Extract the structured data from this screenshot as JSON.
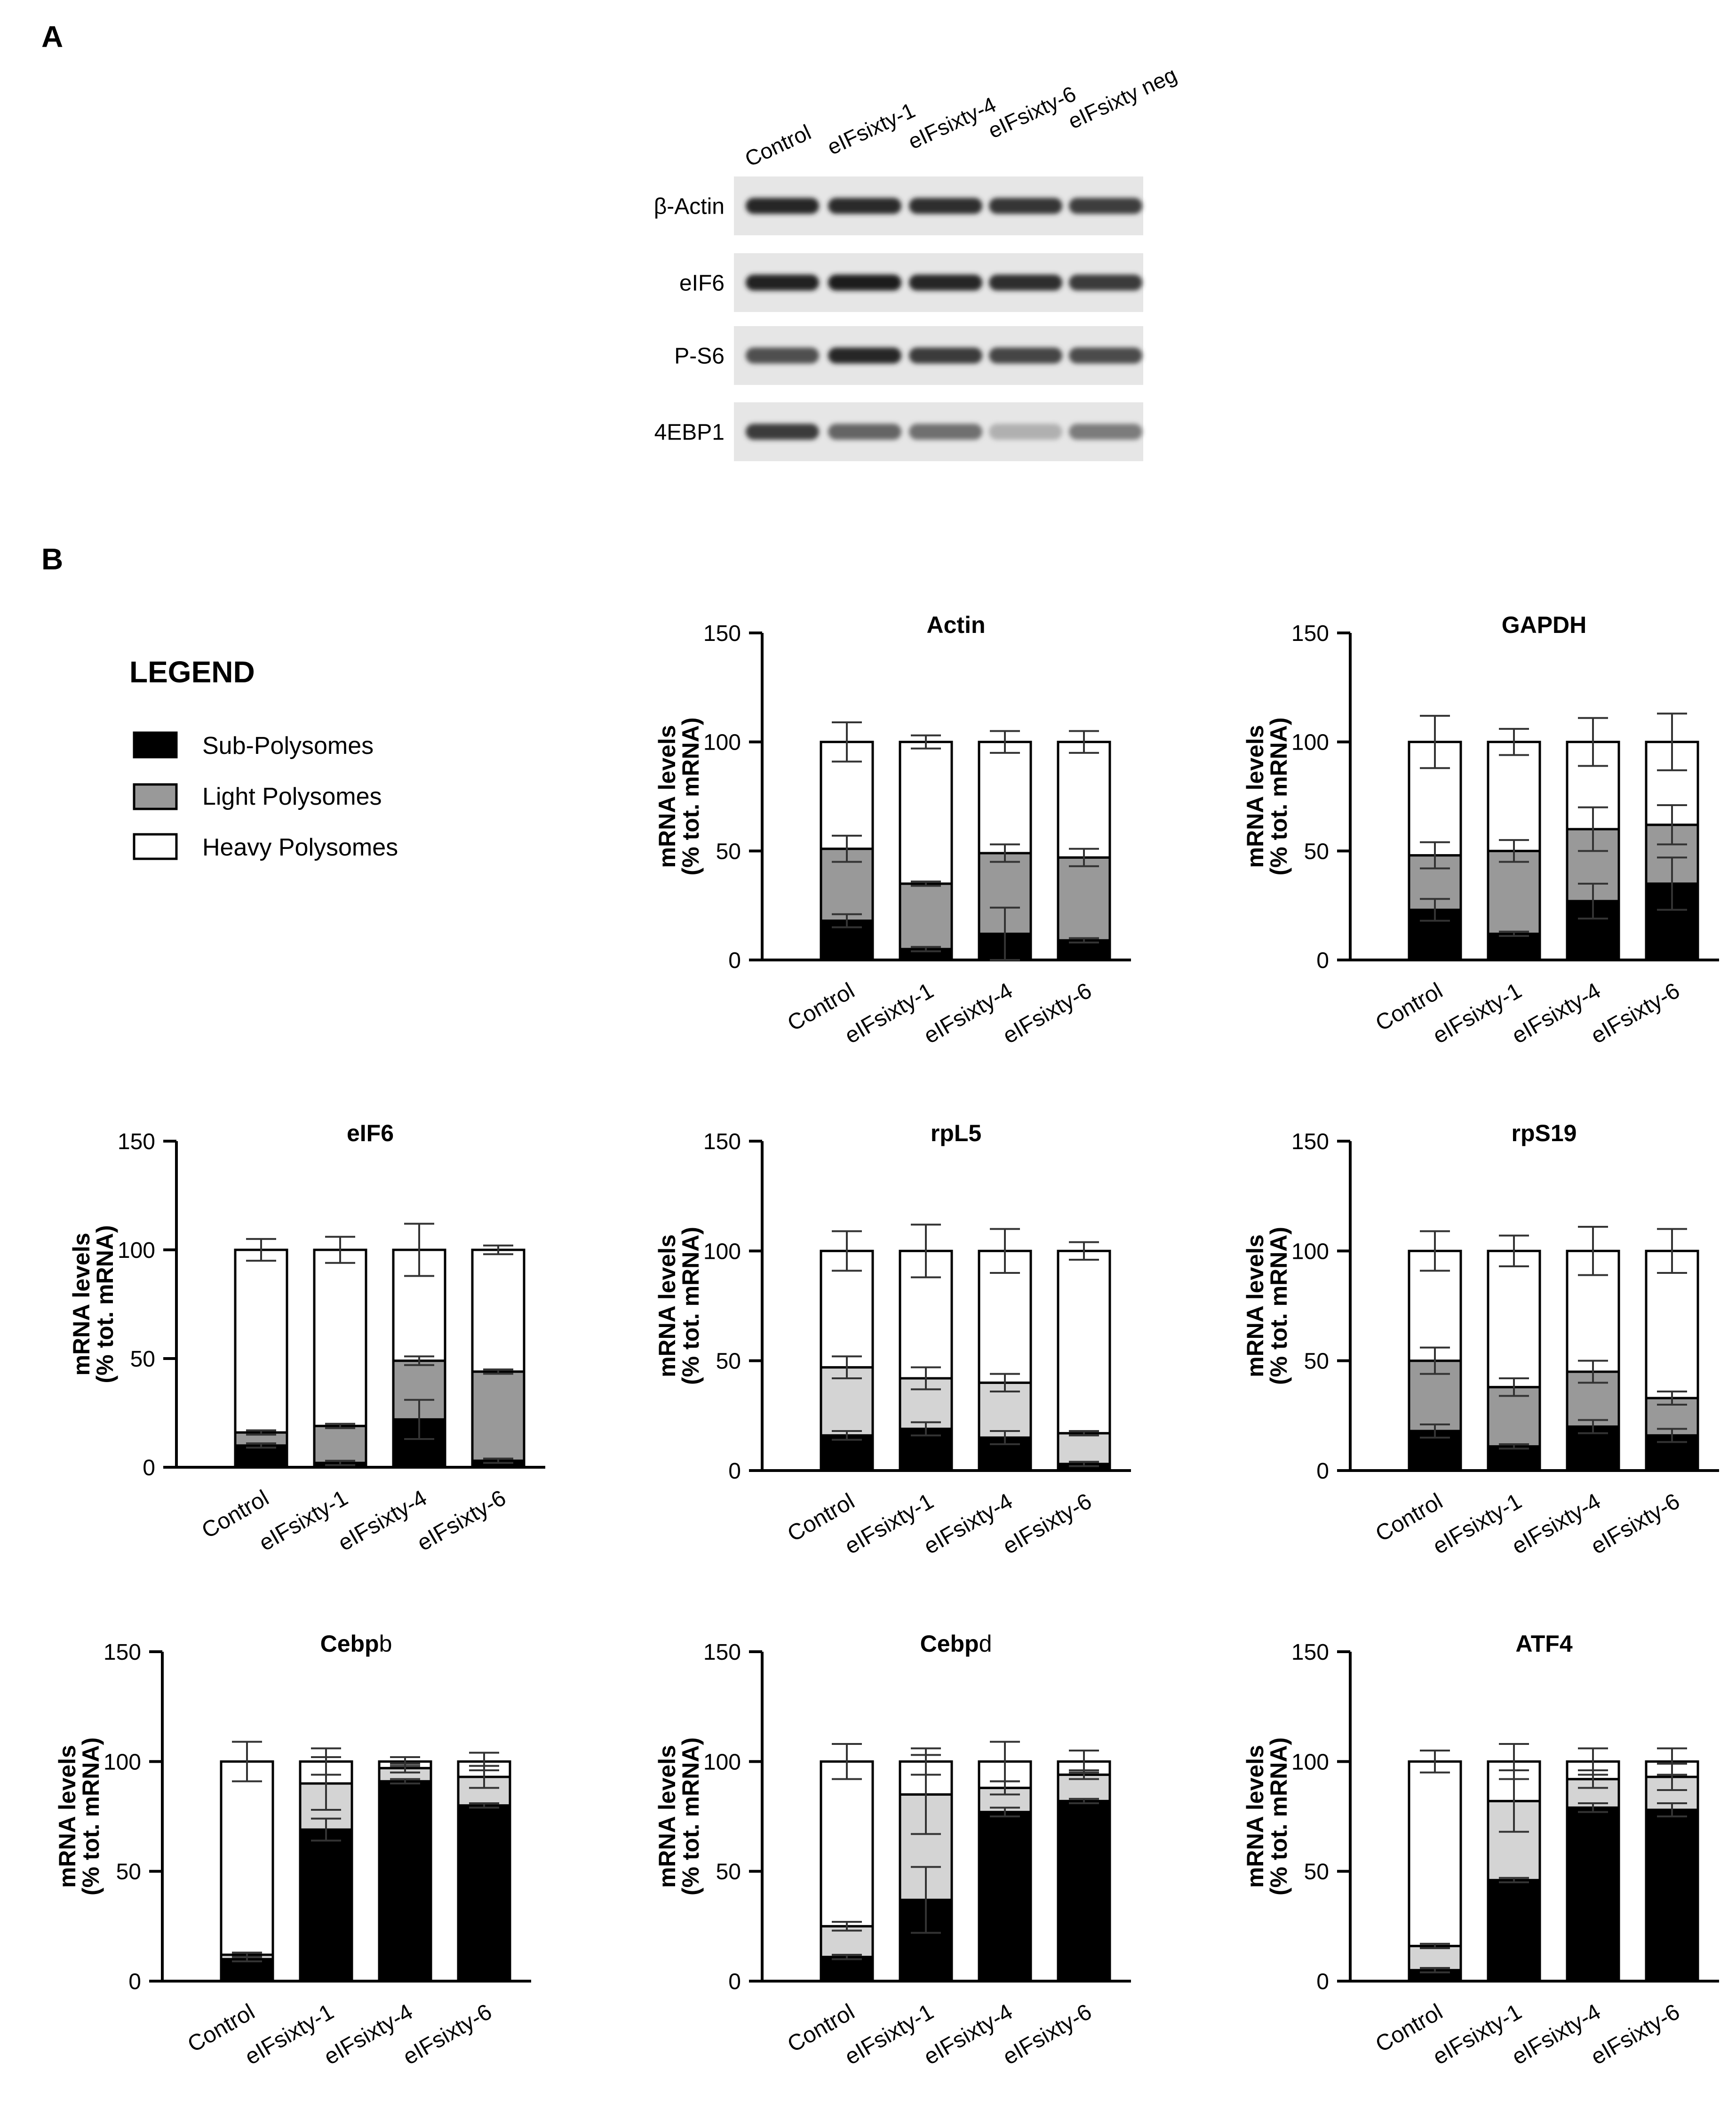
{
  "panel_a": {
    "letter": "A",
    "lanes": [
      "Control",
      "eIFsixty-1",
      "eIFsixty-4",
      "eIFsixty-6",
      "eIFsixty neg"
    ],
    "blots": [
      {
        "label": "β-Actin",
        "intensity": [
          0.9,
          0.88,
          0.85,
          0.82,
          0.78
        ]
      },
      {
        "label": "eIF6",
        "intensity": [
          0.92,
          0.95,
          0.9,
          0.85,
          0.8
        ]
      },
      {
        "label": "P-S6",
        "intensity": [
          0.7,
          0.9,
          0.8,
          0.75,
          0.72
        ]
      },
      {
        "label": "4EBP1",
        "intensity": [
          0.8,
          0.6,
          0.55,
          0.25,
          0.5
        ]
      }
    ]
  },
  "panel_b": {
    "letter": "B"
  },
  "legend": {
    "title": "LEGEND",
    "items": [
      {
        "label": "Sub-Polysomes",
        "color": "#000000"
      },
      {
        "label": "Light Polysomes",
        "color": "#999999"
      },
      {
        "label": "Heavy Polysomes",
        "color": "#ffffff"
      }
    ]
  },
  "chart_data": [
    {
      "type": "bar",
      "stacked": true,
      "title": "Actin",
      "ylabel": "mRNA levels (% tot. mRNA)",
      "yticks": [
        "0",
        "50",
        "100",
        "150"
      ],
      "ylim": [
        0,
        150
      ],
      "categories": [
        "Control",
        "eIFsixty-1",
        "eIFsixty-4",
        "eIFsixty-6"
      ],
      "light_color": "#999999",
      "series": [
        {
          "name": "Sub-Polysomes",
          "values": [
            18,
            5,
            12,
            9
          ],
          "err": [
            3,
            1,
            12,
            1
          ]
        },
        {
          "name": "Light Polysomes",
          "values": [
            33,
            30,
            37,
            38
          ],
          "err": [
            6,
            1,
            4,
            4
          ]
        },
        {
          "name": "Heavy Polysomes",
          "values": [
            49,
            65,
            51,
            53
          ],
          "err": [
            9,
            3,
            5,
            5
          ]
        }
      ]
    },
    {
      "type": "bar",
      "stacked": true,
      "title": "GAPDH",
      "ylabel": "mRNA levels (% tot. mRNA)",
      "yticks": [
        "0",
        "50",
        "100",
        "150"
      ],
      "ylim": [
        0,
        150
      ],
      "categories": [
        "Control",
        "eIFsixty-1",
        "eIFsixty-4",
        "eIFsixty-6"
      ],
      "light_color": "#999999",
      "series": [
        {
          "name": "Sub-Polysomes",
          "values": [
            23,
            12,
            27,
            35
          ],
          "err": [
            5,
            1,
            8,
            12
          ]
        },
        {
          "name": "Light Polysomes",
          "values": [
            25,
            38,
            33,
            27
          ],
          "err": [
            6,
            5,
            10,
            9
          ]
        },
        {
          "name": "Heavy Polysomes",
          "values": [
            52,
            50,
            40,
            38
          ],
          "err": [
            12,
            6,
            11,
            13
          ]
        }
      ]
    },
    {
      "type": "bar",
      "stacked": true,
      "title": "eIF6",
      "ylabel": "mRNA levels (% tot. mRNA)",
      "yticks": [
        "0",
        "50",
        "100",
        "150"
      ],
      "ylim": [
        0,
        150
      ],
      "categories": [
        "Control",
        "eIFsixty-1",
        "eIFsixty-4",
        "eIFsixty-6"
      ],
      "light_color": "#999999",
      "series": [
        {
          "name": "Sub-Polysomes",
          "values": [
            10,
            2,
            22,
            3
          ],
          "err": [
            1,
            1,
            9,
            1
          ]
        },
        {
          "name": "Light Polysomes",
          "values": [
            6,
            17,
            27,
            41
          ],
          "err": [
            1,
            1,
            2,
            1
          ]
        },
        {
          "name": "Heavy Polysomes",
          "values": [
            84,
            81,
            51,
            56
          ],
          "err": [
            5,
            6,
            12,
            2
          ]
        }
      ]
    },
    {
      "type": "bar",
      "stacked": true,
      "title": "rpL5",
      "ylabel": "mRNA levels (% tot. mRNA)",
      "yticks": [
        "0",
        "50",
        "100",
        "150"
      ],
      "ylim": [
        0,
        150
      ],
      "categories": [
        "Control",
        "eIFsixty-1",
        "eIFsixty-4",
        "eIFsixty-6"
      ],
      "light_color": "#d4d4d4",
      "series": [
        {
          "name": "Sub-Polysomes",
          "values": [
            16,
            19,
            15,
            3
          ],
          "err": [
            2,
            3,
            3,
            1
          ]
        },
        {
          "name": "Light Polysomes",
          "values": [
            31,
            23,
            25,
            14
          ],
          "err": [
            5,
            5,
            4,
            1
          ]
        },
        {
          "name": "Heavy Polysomes",
          "values": [
            53,
            58,
            60,
            83
          ],
          "err": [
            9,
            12,
            10,
            4
          ]
        }
      ]
    },
    {
      "type": "bar",
      "stacked": true,
      "title": "rpS19",
      "ylabel": "mRNA levels (% tot. mRNA)",
      "yticks": [
        "0",
        "50",
        "100",
        "150"
      ],
      "ylim": [
        0,
        150
      ],
      "categories": [
        "Control",
        "eIFsixty-1",
        "eIFsixty-4",
        "eIFsixty-6"
      ],
      "light_color": "#999999",
      "series": [
        {
          "name": "Sub-Polysomes",
          "values": [
            18,
            11,
            20,
            16
          ],
          "err": [
            3,
            1,
            3,
            3
          ]
        },
        {
          "name": "Light Polysomes",
          "values": [
            32,
            27,
            25,
            17
          ],
          "err": [
            6,
            4,
            5,
            3
          ]
        },
        {
          "name": "Heavy Polysomes",
          "values": [
            50,
            62,
            55,
            67
          ],
          "err": [
            9,
            7,
            11,
            10
          ]
        }
      ]
    },
    {
      "type": "bar",
      "stacked": true,
      "title": "Cebpb",
      "title_bold": "Cebp",
      "title_tail": "b",
      "ylabel": "mRNA levels (% tot. mRNA)",
      "yticks": [
        "0",
        "50",
        "100",
        "150"
      ],
      "ylim": [
        0,
        150
      ],
      "categories": [
        "Control",
        "eIFsixty-1",
        "eIFsixty-4",
        "eIFsixty-6"
      ],
      "light_color": "#d4d4d4",
      "series": [
        {
          "name": "Sub-Polysomes",
          "values": [
            10,
            69,
            91,
            80
          ],
          "err": [
            1,
            5,
            1,
            1
          ]
        },
        {
          "name": "Light Polysomes",
          "values": [
            2,
            21,
            6,
            13
          ],
          "err": [
            1,
            12,
            2,
            5
          ]
        },
        {
          "name": "Heavy Polysomes",
          "values": [
            88,
            10,
            3,
            7
          ],
          "err": [
            9,
            6,
            2,
            4
          ]
        }
      ]
    },
    {
      "type": "bar",
      "stacked": true,
      "title": "Cebpd",
      "title_bold": "Cebp",
      "title_tail": "d",
      "ylabel": "mRNA levels (% tot. mRNA)",
      "yticks": [
        "0",
        "50",
        "100",
        "150"
      ],
      "ylim": [
        0,
        150
      ],
      "categories": [
        "Control",
        "eIFsixty-1",
        "eIFsixty-4",
        "eIFsixty-6"
      ],
      "light_color": "#d4d4d4",
      "series": [
        {
          "name": "Sub-Polysomes",
          "values": [
            11,
            37,
            77,
            82
          ],
          "err": [
            1,
            15,
            2,
            1
          ]
        },
        {
          "name": "Light Polysomes",
          "values": [
            14,
            48,
            11,
            12
          ],
          "err": [
            2,
            18,
            3,
            2
          ]
        },
        {
          "name": "Heavy Polysomes",
          "values": [
            75,
            15,
            12,
            6
          ],
          "err": [
            8,
            6,
            9,
            5
          ]
        }
      ]
    },
    {
      "type": "bar",
      "stacked": true,
      "title": "ATF4",
      "ylabel": "mRNA levels (% tot. mRNA)",
      "yticks": [
        "0",
        "50",
        "100",
        "150"
      ],
      "ylim": [
        0,
        150
      ],
      "categories": [
        "Control",
        "eIFsixty-1",
        "eIFsixty-4",
        "eIFsixty-6"
      ],
      "light_color": "#d4d4d4",
      "series": [
        {
          "name": "Sub-Polysomes",
          "values": [
            5,
            46,
            79,
            78
          ],
          "err": [
            1,
            1,
            2,
            3
          ]
        },
        {
          "name": "Light Polysomes",
          "values": [
            11,
            36,
            13,
            15
          ],
          "err": [
            1,
            14,
            4,
            6
          ]
        },
        {
          "name": "Heavy Polysomes",
          "values": [
            84,
            18,
            8,
            7
          ],
          "err": [
            5,
            8,
            6,
            6
          ]
        }
      ]
    }
  ]
}
